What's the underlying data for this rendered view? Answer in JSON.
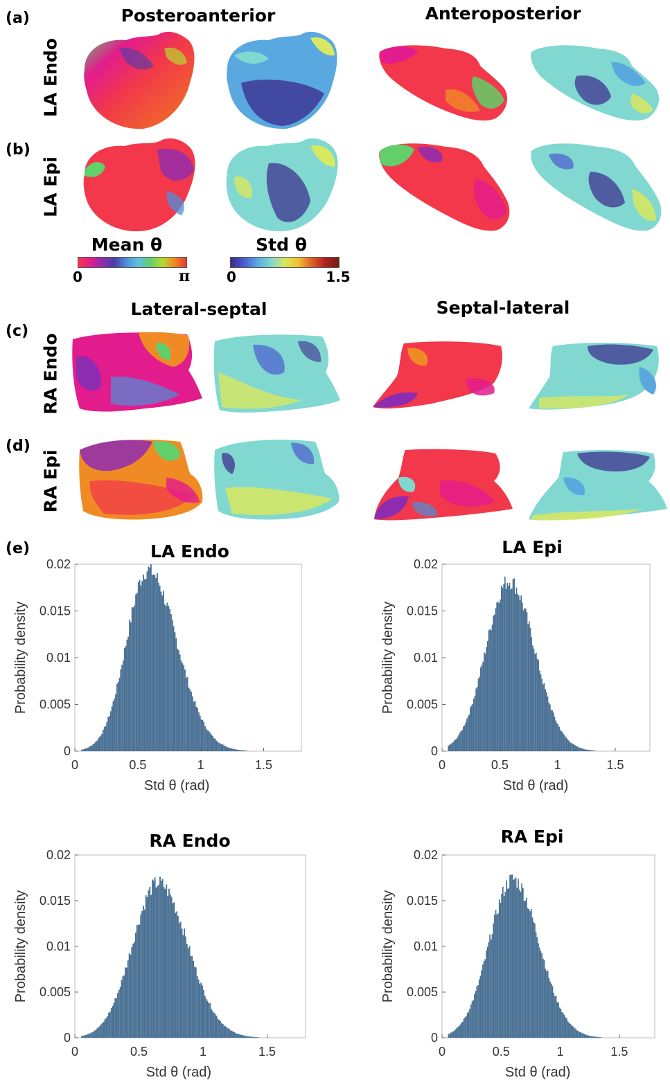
{
  "panel_letters": {
    "a": "(a)",
    "b": "(b)",
    "c": "(c)",
    "d": "(d)",
    "e": "(e)"
  },
  "maps": {
    "la_columns": [
      "Posteroanterior",
      "Anteroposterior"
    ],
    "ra_columns": [
      "Lateral-septal",
      "Septal-lateral"
    ],
    "rows": {
      "a": "LA Endo",
      "b": "LA Epi",
      "c": "RA Endo",
      "d": "RA Epi"
    }
  },
  "colorbars": {
    "mean": {
      "title": "Mean θ",
      "min": "0",
      "max": "π",
      "colors": [
        "#f2384a",
        "#e21c8c",
        "#8e2cb0",
        "#4a3ea8",
        "#4f8fd8",
        "#5cc3e0",
        "#62cf6a",
        "#b6d82e",
        "#f08a25",
        "#e83a2a"
      ]
    },
    "std": {
      "title": "Std θ",
      "min": "0",
      "max": "1.5",
      "colors": [
        "#3a2a8c",
        "#4b5cd0",
        "#5aa8e0",
        "#80d8d0",
        "#d8e860",
        "#f0c030",
        "#e06028",
        "#b02020",
        "#702010"
      ]
    }
  },
  "chart_data": [
    {
      "type": "bar",
      "title": "LA Endo",
      "xlabel": "Std θ (rad)",
      "ylabel": "Probability density",
      "xlim": [
        0,
        1.8
      ],
      "ylim": [
        0,
        0.02
      ],
      "xticks": [
        "0",
        "0.5",
        "1",
        "1.5"
      ],
      "yticks": [
        "0",
        "0.005",
        "0.01",
        "0.015",
        "0.02"
      ],
      "peak_x": 0.58,
      "peak_y": 0.0198,
      "sigma_left": 0.17,
      "sigma_right": 0.23,
      "color": "#4a7194"
    },
    {
      "type": "bar",
      "title": "LA Epi",
      "xlabel": "Std θ (rad)",
      "ylabel": "Probability density",
      "xlim": [
        0,
        1.8
      ],
      "ylim": [
        0,
        0.02
      ],
      "xticks": [
        "0",
        "0.5",
        "1",
        "1.5"
      ],
      "yticks": [
        "0",
        "0.005",
        "0.01",
        "0.015",
        "0.02"
      ],
      "peak_x": 0.58,
      "peak_y": 0.0186,
      "sigma_left": 0.2,
      "sigma_right": 0.22,
      "color": "#4a7194"
    },
    {
      "type": "bar",
      "title": "RA Endo",
      "xlabel": "Std θ (rad)",
      "ylabel": "Probability density",
      "xlim": [
        0,
        1.8
      ],
      "ylim": [
        0,
        0.02
      ],
      "xticks": [
        "0",
        "0.5",
        "1",
        "1.5"
      ],
      "yticks": [
        "0",
        "0.005",
        "0.01",
        "0.015",
        "0.02"
      ],
      "peak_x": 0.65,
      "peak_y": 0.0173,
      "sigma_left": 0.2,
      "sigma_right": 0.23,
      "color": "#4a7194"
    },
    {
      "type": "bar",
      "title": "RA Epi",
      "xlabel": "Std θ (rad)",
      "ylabel": "Probability density",
      "xlim": [
        0,
        1.8
      ],
      "ylim": [
        0,
        0.02
      ],
      "xticks": [
        "0",
        "0.5",
        "1",
        "1.5"
      ],
      "yticks": [
        "0",
        "0.005",
        "0.01",
        "0.015",
        "0.02"
      ],
      "peak_x": 0.6,
      "peak_y": 0.0177,
      "sigma_left": 0.2,
      "sigma_right": 0.22,
      "color": "#4a7194"
    }
  ]
}
